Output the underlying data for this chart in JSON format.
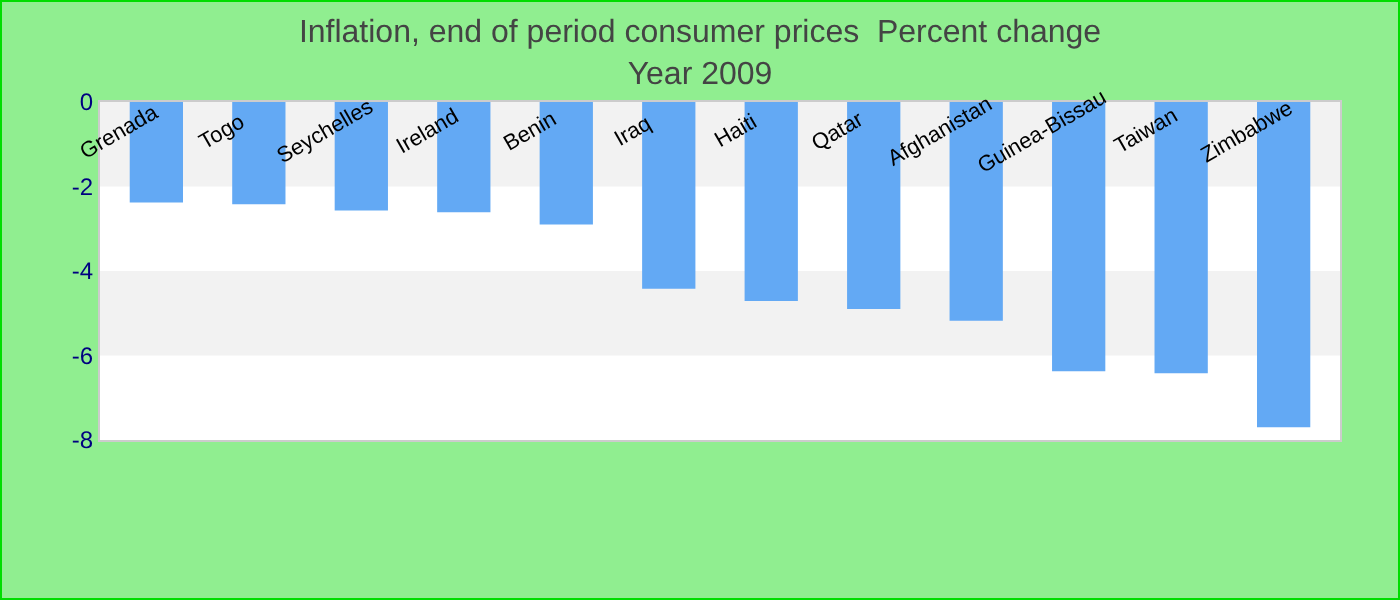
{
  "chart_data": {
    "type": "bar",
    "title": "Inflation, end of period consumer prices  Percent change",
    "subtitle": "Year 2009",
    "categories": [
      "Grenada",
      "Togo",
      "Seychelles",
      "Ireland",
      "Benin",
      "Iraq",
      "Haiti",
      "Qatar",
      "Afghanistan",
      "Guinea-Bissau",
      "Taiwan",
      "Zimbabwe"
    ],
    "values": [
      -2.38,
      -2.42,
      -2.57,
      -2.61,
      -2.9,
      -4.42,
      -4.71,
      -4.9,
      -5.18,
      -6.37,
      -6.42,
      -7.7
    ],
    "color": "#63a9f4",
    "ylim": [
      -8,
      0
    ],
    "yticks": [
      0,
      -2,
      -4,
      -6,
      -8
    ],
    "grid": false,
    "bands": [
      {
        "axis": "y",
        "from": 0,
        "to": -2,
        "color": "#f2f2f2"
      },
      {
        "axis": "y",
        "from": -4,
        "to": -6,
        "color": "#f2f2f2"
      }
    ]
  }
}
